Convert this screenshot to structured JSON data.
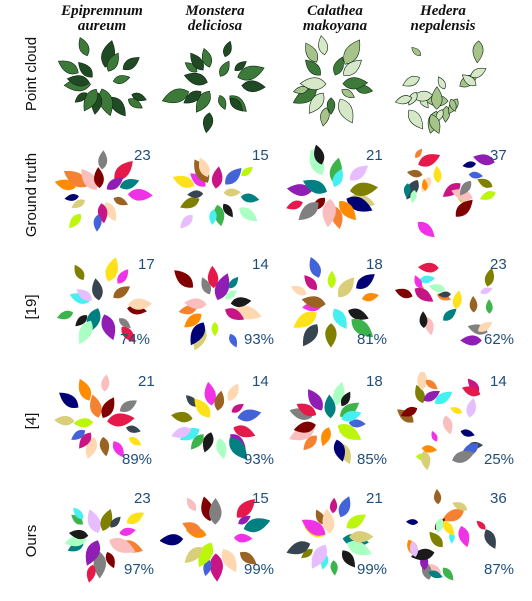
{
  "species": [
    {
      "line1": "Epipremnum",
      "line2": "aureum"
    },
    {
      "line1": "Monstera",
      "line2": "deliciosa"
    },
    {
      "line1": "Calathea",
      "line2": "makoyana"
    },
    {
      "line1": "Hedera",
      "line2": "nepalensis"
    }
  ],
  "rows": [
    {
      "label": "Point cloud",
      "counts": [
        "",
        "",
        "",
        ""
      ],
      "accuracy": [
        "",
        "",
        "",
        ""
      ]
    },
    {
      "label": "Ground truth",
      "counts": [
        "23",
        "15",
        "21",
        "37"
      ],
      "accuracy": [
        "",
        "",
        "",
        ""
      ]
    },
    {
      "label": "[19]",
      "counts": [
        "17",
        "14",
        "18",
        "23"
      ],
      "accuracy": [
        "74%",
        "93%",
        "81%",
        "62%"
      ]
    },
    {
      "label": "[4]",
      "counts": [
        "21",
        "14",
        "18",
        "14"
      ],
      "accuracy": [
        "89%",
        "93%",
        "85%",
        "25%"
      ]
    },
    {
      "label": "Ours",
      "counts": [
        "23",
        "15",
        "21",
        "36"
      ],
      "accuracy": [
        "97%",
        "99%",
        "99%",
        "87%"
      ]
    }
  ],
  "palette": [
    "#e6194b",
    "#3cb44b",
    "#ffe119",
    "#4363d8",
    "#f58231",
    "#911eb4",
    "#46f0f0",
    "#f032e6",
    "#bcf60c",
    "#fabebe",
    "#008080",
    "#e6beff",
    "#9a6324",
    "#d9cf7a",
    "#800000",
    "#aaffc3",
    "#808000",
    "#ffd8b1",
    "#000075",
    "#808080",
    "#1a1a1a",
    "#36454f",
    "#c71585",
    "#ff8c00"
  ],
  "plant_colors": {
    "dark_green": "#1f4a24",
    "mid_green": "#3d7a3a",
    "light_green": "#a6c48a",
    "pale": "#d6e8c8"
  }
}
